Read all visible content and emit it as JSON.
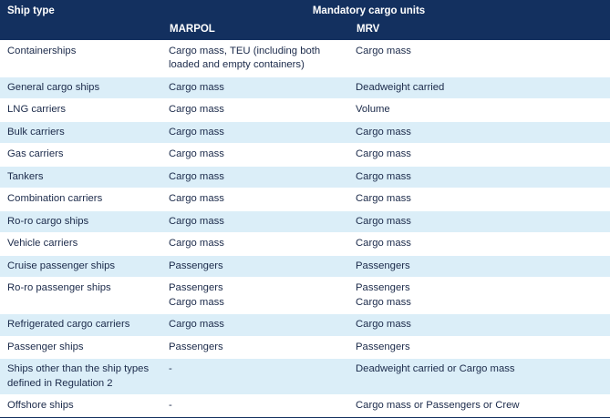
{
  "header": {
    "ship_type": "Ship type",
    "group": "Mandatory cargo units",
    "marpol": "MARPOL",
    "mrv": "MRV"
  },
  "rows": [
    {
      "ship": "Containerships",
      "marpol": "Cargo mass, TEU (including both\nloaded and empty containers)",
      "mrv": "Cargo mass"
    },
    {
      "ship": "General cargo ships",
      "marpol": "Cargo mass",
      "mrv": "Deadweight carried"
    },
    {
      "ship": "LNG carriers",
      "marpol": "Cargo mass",
      "mrv": "Volume"
    },
    {
      "ship": "Bulk carriers",
      "marpol": "Cargo mass",
      "mrv": "Cargo mass"
    },
    {
      "ship": "Gas carriers",
      "marpol": "Cargo mass",
      "mrv": "Cargo mass"
    },
    {
      "ship": "Tankers",
      "marpol": "Cargo mass",
      "mrv": "Cargo mass"
    },
    {
      "ship": "Combination carriers",
      "marpol": "Cargo mass",
      "mrv": "Cargo mass"
    },
    {
      "ship": "Ro-ro cargo ships",
      "marpol": "Cargo mass",
      "mrv": "Cargo mass"
    },
    {
      "ship": "Vehicle carriers",
      "marpol": "Cargo mass",
      "mrv": "Cargo mass"
    },
    {
      "ship": "Cruise passenger ships",
      "marpol": "Passengers",
      "mrv": "Passengers"
    },
    {
      "ship": "Ro-ro passenger ships",
      "marpol": "Passengers\nCargo mass",
      "mrv": "Passengers\nCargo mass"
    },
    {
      "ship": "Refrigerated cargo carriers",
      "marpol": "Cargo mass",
      "mrv": "Cargo mass"
    },
    {
      "ship": "Passenger ships",
      "marpol": "Passengers",
      "mrv": "Passengers"
    },
    {
      "ship": "Ships other than the ship types\ndefined in Regulation 2",
      "marpol": "-",
      "mrv": "Deadweight carried or Cargo mass"
    },
    {
      "ship": "Offshore ships",
      "marpol": "-",
      "mrv": "Cargo mass or Passengers or Crew"
    }
  ]
}
